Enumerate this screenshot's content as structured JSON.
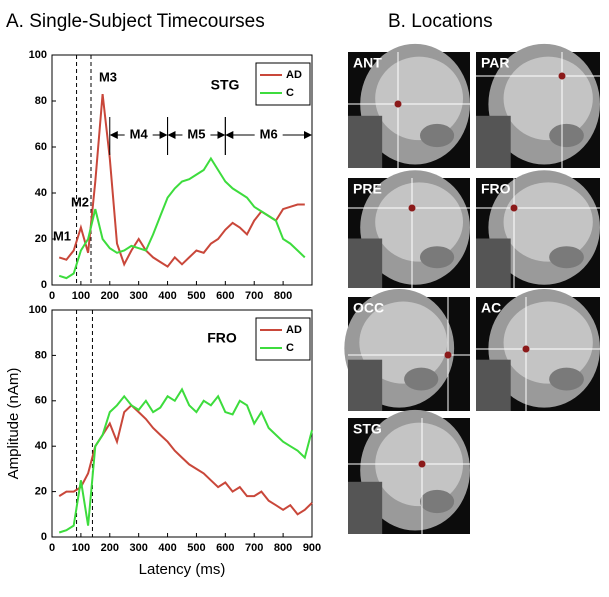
{
  "panels": {
    "a_title": "A.  Single-Subject Timecourses",
    "b_title": "B.  Locations"
  },
  "locations": [
    "ANT",
    "PAR",
    "PRE",
    "FRO",
    "OCC",
    "AC",
    "STG"
  ],
  "chart_data": [
    {
      "type": "line",
      "label": "STG",
      "legend": "upper right",
      "x": [
        25,
        50,
        75,
        100,
        125,
        150,
        175,
        200,
        225,
        250,
        275,
        300,
        325,
        350,
        375,
        400,
        425,
        450,
        475,
        500,
        525,
        550,
        575,
        600,
        625,
        650,
        675,
        700,
        725,
        750,
        775,
        800,
        825,
        850,
        875
      ],
      "series": [
        {
          "name": "AD",
          "color": "#c9473a",
          "values": [
            12,
            11,
            15,
            25,
            14,
            45,
            83,
            55,
            18,
            9,
            15,
            20,
            15,
            12,
            10,
            8,
            12,
            9,
            12,
            15,
            14,
            18,
            20,
            24,
            27,
            25,
            22,
            28,
            32,
            30,
            28,
            33,
            34,
            35,
            35
          ]
        },
        {
          "name": "C",
          "color": "#3ddc3d",
          "values": [
            4,
            3,
            5,
            15,
            20,
            33,
            20,
            16,
            14,
            15,
            17,
            16,
            15,
            22,
            30,
            38,
            42,
            45,
            46,
            48,
            50,
            55,
            50,
            45,
            42,
            40,
            38,
            34,
            32,
            30,
            28,
            20,
            18,
            15,
            12
          ]
        }
      ],
      "xlim": [
        0,
        900
      ],
      "ylim": [
        0,
        100
      ],
      "xticks": [
        0,
        100,
        200,
        300,
        400,
        500,
        600,
        700,
        800
      ],
      "yticks": [
        0,
        20,
        40,
        60,
        80,
        100
      ],
      "markers": [
        85,
        135
      ],
      "annotations": [
        "M1",
        "M2",
        "M3"
      ],
      "segments": [
        {
          "label": "M4",
          "from": 200,
          "to": 400
        },
        {
          "label": "M5",
          "from": 400,
          "to": 600
        },
        {
          "label": "M6",
          "from": 600,
          "to": 900
        }
      ]
    },
    {
      "type": "line",
      "label": "FRO",
      "legend": "upper right",
      "x": [
        25,
        50,
        75,
        100,
        125,
        150,
        175,
        200,
        225,
        250,
        275,
        300,
        325,
        350,
        375,
        400,
        425,
        450,
        475,
        500,
        525,
        550,
        575,
        600,
        625,
        650,
        675,
        700,
        725,
        750,
        775,
        800,
        825,
        850,
        875,
        900
      ],
      "series": [
        {
          "name": "AD",
          "color": "#c9473a",
          "values": [
            18,
            20,
            20,
            22,
            28,
            40,
            45,
            50,
            42,
            55,
            58,
            55,
            52,
            48,
            45,
            42,
            38,
            35,
            32,
            30,
            28,
            25,
            22,
            24,
            20,
            22,
            18,
            18,
            20,
            16,
            14,
            12,
            14,
            10,
            12,
            15
          ]
        },
        {
          "name": "C",
          "color": "#3ddc3d",
          "values": [
            2,
            3,
            5,
            25,
            5,
            40,
            45,
            55,
            58,
            62,
            58,
            56,
            60,
            55,
            57,
            62,
            60,
            65,
            58,
            55,
            60,
            58,
            62,
            55,
            54,
            60,
            58,
            50,
            55,
            48,
            45,
            42,
            40,
            38,
            35,
            47
          ]
        }
      ],
      "xlim": [
        0,
        900
      ],
      "ylim": [
        0,
        100
      ],
      "xticks": [
        0,
        100,
        200,
        300,
        400,
        500,
        600,
        700,
        800,
        900
      ],
      "yticks": [
        0,
        20,
        40,
        60,
        80,
        100
      ],
      "markers": [
        85,
        140
      ],
      "xlabel": "Latency (ms)",
      "ylabel": "Amplitude (nAm)"
    }
  ]
}
